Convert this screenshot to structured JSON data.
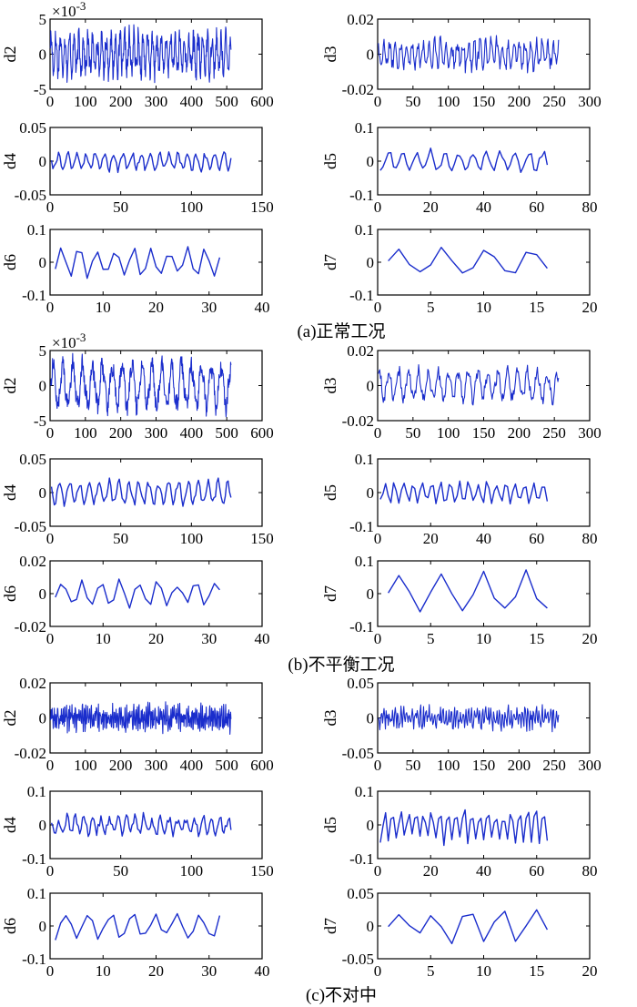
{
  "chart_data": [
    {
      "type": "line",
      "condition": "a",
      "ylabel": "d2",
      "multiplier": "×10-3",
      "xlim": [
        0,
        600
      ],
      "ylim": [
        -5,
        5
      ],
      "xticks": [
        "0",
        "100",
        "200",
        "300",
        "400",
        "500",
        "600"
      ],
      "yticks": [
        "-5",
        "0",
        "5"
      ],
      "n": 512,
      "amp": 3.2,
      "period": 13,
      "noise": 1.4,
      "color": "#1a2dcc"
    },
    {
      "type": "line",
      "condition": "a",
      "ylabel": "d3",
      "xlim": [
        0,
        300
      ],
      "ylim": [
        -0.02,
        0.02
      ],
      "xticks": [
        "0",
        "50",
        "100",
        "150",
        "200",
        "250",
        "300"
      ],
      "yticks": [
        "-0.02",
        "0",
        "0.02"
      ],
      "n": 256,
      "amp": 0.009,
      "period": 8,
      "noise": 0.004,
      "color": "#1a2dcc"
    },
    {
      "type": "line",
      "condition": "a",
      "ylabel": "d4",
      "xlim": [
        0,
        150
      ],
      "ylim": [
        -0.05,
        0.05
      ],
      "xticks": [
        "0",
        "50",
        "100",
        "150"
      ],
      "yticks": [
        "-0.05",
        "0",
        "0.05"
      ],
      "n": 128,
      "amp": 0.015,
      "period": 6.5,
      "noise": 0.004,
      "color": "#1a2dcc"
    },
    {
      "type": "line",
      "condition": "a",
      "ylabel": "d5",
      "xlim": [
        0,
        80
      ],
      "ylim": [
        -0.1,
        0.1
      ],
      "xticks": [
        "0",
        "20",
        "40",
        "60",
        "80"
      ],
      "yticks": [
        "-0.1",
        "0",
        "0.1"
      ],
      "n": 64,
      "amp": 0.035,
      "period": 5.3,
      "noise": 0.008,
      "color": "#1a2dcc"
    },
    {
      "type": "line",
      "condition": "a",
      "ylabel": "d6",
      "xlim": [
        0,
        40
      ],
      "ylim": [
        -0.1,
        0.1
      ],
      "xticks": [
        "0",
        "10",
        "20",
        "30",
        "40"
      ],
      "yticks": [
        "-0.1",
        "0",
        "0.1"
      ],
      "n": 32,
      "amp": 0.055,
      "period": 3.4,
      "noise": 0.006,
      "color": "#1a2dcc"
    },
    {
      "type": "line",
      "condition": "a",
      "ylabel": "d7",
      "xlim": [
        0,
        20
      ],
      "ylim": [
        -0.1,
        0.1
      ],
      "xticks": [
        "0",
        "5",
        "10",
        "15",
        "20"
      ],
      "yticks": [
        "-0.1",
        "0",
        "0.1"
      ],
      "n": 16,
      "amp": 0.05,
      "period": 4.2,
      "noise": 0.004,
      "color": "#1a2dcc"
    },
    {
      "type": "line",
      "condition": "b",
      "ylabel": "d2",
      "multiplier": "×10-3",
      "xlim": [
        0,
        600
      ],
      "ylim": [
        -5,
        5
      ],
      "xticks": [
        "0",
        "100",
        "200",
        "300",
        "400",
        "500",
        "600"
      ],
      "yticks": [
        "-5",
        "0",
        "5"
      ],
      "n": 512,
      "amp": 3.8,
      "period": 28,
      "noise": 1.2,
      "color": "#1a2dcc"
    },
    {
      "type": "line",
      "condition": "b",
      "ylabel": "d3",
      "xlim": [
        0,
        300
      ],
      "ylim": [
        -0.02,
        0.02
      ],
      "xticks": [
        "0",
        "50",
        "100",
        "150",
        "200",
        "250",
        "300"
      ],
      "yticks": [
        "-0.02",
        "0",
        "0.02"
      ],
      "n": 256,
      "amp": 0.01,
      "period": 14,
      "noise": 0.003,
      "color": "#1a2dcc"
    },
    {
      "type": "line",
      "condition": "b",
      "ylabel": "d4",
      "xlim": [
        0,
        150
      ],
      "ylim": [
        -0.05,
        0.05
      ],
      "xticks": [
        "0",
        "50",
        "100",
        "150"
      ],
      "yticks": [
        "-0.05",
        "0",
        "0.05"
      ],
      "n": 128,
      "amp": 0.02,
      "period": 7,
      "noise": 0.004,
      "color": "#1a2dcc"
    },
    {
      "type": "line",
      "condition": "b",
      "ylabel": "d5",
      "xlim": [
        0,
        80
      ],
      "ylim": [
        -0.1,
        0.1
      ],
      "xticks": [
        "0",
        "20",
        "40",
        "60",
        "80"
      ],
      "yticks": [
        "-0.1",
        "0",
        "0.1"
      ],
      "n": 64,
      "amp": 0.04,
      "period": 3.5,
      "noise": 0.005,
      "color": "#1a2dcc"
    },
    {
      "type": "line",
      "condition": "b",
      "ylabel": "d6",
      "xlim": [
        0,
        40
      ],
      "ylim": [
        -0.02,
        0.02
      ],
      "xticks": [
        "0",
        "10",
        "20",
        "30",
        "40"
      ],
      "yticks": [
        "-0.02",
        "0",
        "0.02"
      ],
      "n": 32,
      "amp": 0.009,
      "period": 3.6,
      "noise": 0.002,
      "color": "#1a2dcc"
    },
    {
      "type": "line",
      "condition": "b",
      "ylabel": "d7",
      "xlim": [
        0,
        20
      ],
      "ylim": [
        -0.1,
        0.1
      ],
      "xticks": [
        "0",
        "5",
        "10",
        "15",
        "20"
      ],
      "yticks": [
        "-0.1",
        "0",
        "0.1"
      ],
      "n": 16,
      "amp": 0.075,
      "period": 4,
      "noise": 0.005,
      "color": "#1a2dcc"
    },
    {
      "type": "line",
      "condition": "c",
      "ylabel": "d2",
      "xlim": [
        0,
        600
      ],
      "ylim": [
        -0.02,
        0.02
      ],
      "xticks": [
        "0",
        "100",
        "200",
        "300",
        "400",
        "500",
        "600"
      ],
      "yticks": [
        "-0.02",
        "0",
        "0.02"
      ],
      "n": 512,
      "amp": 0.005,
      "period": 5,
      "noise": 0.005,
      "color": "#1a2dcc"
    },
    {
      "type": "line",
      "condition": "c",
      "ylabel": "d3",
      "xlim": [
        0,
        300
      ],
      "ylim": [
        -0.05,
        0.05
      ],
      "xticks": [
        "0",
        "50",
        "100",
        "150",
        "200",
        "250",
        "300"
      ],
      "yticks": [
        "-0.05",
        "0",
        "0.05"
      ],
      "n": 256,
      "amp": 0.012,
      "period": 4,
      "noise": 0.01,
      "color": "#1a2dcc"
    },
    {
      "type": "line",
      "condition": "c",
      "ylabel": "d4",
      "xlim": [
        0,
        150
      ],
      "ylim": [
        -0.1,
        0.1
      ],
      "xticks": [
        "0",
        "50",
        "100",
        "150"
      ],
      "yticks": [
        "-0.1",
        "0",
        "0.1"
      ],
      "n": 128,
      "amp": 0.03,
      "period": 6,
      "noise": 0.015,
      "color": "#1a2dcc"
    },
    {
      "type": "line",
      "condition": "c",
      "ylabel": "d5",
      "xlim": [
        0,
        80
      ],
      "ylim": [
        -0.1,
        0.1
      ],
      "xticks": [
        "0",
        "20",
        "40",
        "60",
        "80"
      ],
      "yticks": [
        "-0.1",
        "0",
        "0.1"
      ],
      "n": 64,
      "amp": 0.055,
      "period": 3,
      "noise": 0.015,
      "color": "#1a2dcc"
    },
    {
      "type": "line",
      "condition": "c",
      "ylabel": "d6",
      "xlim": [
        0,
        40
      ],
      "ylim": [
        -0.1,
        0.1
      ],
      "xticks": [
        "0",
        "10",
        "20",
        "30",
        "40"
      ],
      "yticks": [
        "-0.1",
        "0",
        "0.1"
      ],
      "n": 32,
      "amp": 0.045,
      "period": 4.2,
      "noise": 0.01,
      "color": "#1a2dcc"
    },
    {
      "type": "line",
      "condition": "c",
      "ylabel": "d7",
      "xlim": [
        0,
        20
      ],
      "ylim": [
        -0.05,
        0.05
      ],
      "xticks": [
        "0",
        "5",
        "10",
        "15",
        "20"
      ],
      "yticks": [
        "-0.05",
        "0",
        "0.05"
      ],
      "n": 16,
      "amp": 0.025,
      "period": 3.3,
      "noise": 0.01,
      "color": "#1a2dcc"
    }
  ],
  "captions": {
    "a": "(a)正常工况",
    "b": "(b)不平衡工况",
    "c": "(c)不对中"
  }
}
